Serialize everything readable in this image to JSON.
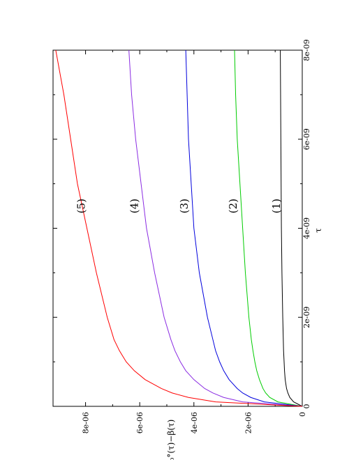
{
  "chart_data": {
    "type": "line",
    "orientation": "rotated 90 degrees counter-clockwise (x axis runs vertically, y axis horizontally)",
    "title": "",
    "xlabel": "τ",
    "ylabel": "β₀°(τ)−β(τ)",
    "xlim": [
      0,
      8e-09
    ],
    "ylim": [
      0,
      9.2e-06
    ],
    "grid": false,
    "x_ticks": [
      {
        "value": 0,
        "label": "0"
      },
      {
        "value": 2e-09,
        "label": "2e-09"
      },
      {
        "value": 4e-09,
        "label": "4e-09"
      },
      {
        "value": 6e-09,
        "label": "6e-09"
      },
      {
        "value": 8e-09,
        "label": "8e-09"
      }
    ],
    "y_ticks": [
      {
        "value": 0,
        "label": "0"
      },
      {
        "value": 2e-06,
        "label": "2e-06"
      },
      {
        "value": 4e-06,
        "label": "4e-06"
      },
      {
        "value": 6e-06,
        "label": "6e-06"
      },
      {
        "value": 8e-06,
        "label": "8e-06"
      }
    ],
    "x": [
      0,
      1e-10,
      2e-10,
      3e-10,
      4e-10,
      6e-10,
      8e-10,
      1e-09,
      1.25e-09,
      1.5e-09,
      2e-09,
      3e-09,
      4e-09,
      5e-09,
      6e-09,
      7e-09,
      8e-09
    ],
    "series": [
      {
        "label": "(1)",
        "color": "#000000",
        "values": [
          0,
          3.2e-07,
          4.6e-07,
          5.3e-07,
          5.8e-07,
          6.3e-07,
          6.55e-07,
          6.7e-07,
          6.9e-07,
          7e-07,
          7.2e-07,
          7.5e-07,
          7.7e-07,
          7.8e-07,
          7.9e-07,
          8e-07,
          8.1e-07
        ]
      },
      {
        "label": "(2)",
        "color": "#00cc00",
        "values": [
          0,
          9e-07,
          1.2e-06,
          1.35e-06,
          1.45e-06,
          1.58e-06,
          1.68e-06,
          1.75e-06,
          1.82e-06,
          1.88e-06,
          1.97e-06,
          2.1e-06,
          2.2e-06,
          2.3e-06,
          2.4e-06,
          2.46e-06,
          2.5e-06
        ]
      },
      {
        "label": "(3)",
        "color": "#0000dd",
        "values": [
          0,
          1.4e-06,
          1.9e-06,
          2.2e-06,
          2.4e-06,
          2.7e-06,
          2.9e-06,
          3.05e-06,
          3.2e-06,
          3.3e-06,
          3.5e-06,
          3.8e-06,
          4e-06,
          4.1e-06,
          4.2e-06,
          4.25e-06,
          4.3e-06
        ]
      },
      {
        "label": "(4)",
        "color": "#8a2be2",
        "values": [
          0,
          2.2e-06,
          2.9e-06,
          3.3e-06,
          3.6e-06,
          4e-06,
          4.3e-06,
          4.5e-06,
          4.7e-06,
          4.85e-06,
          5.1e-06,
          5.45e-06,
          5.75e-06,
          5.95e-06,
          6.15e-06,
          6.3e-06,
          6.4e-06
        ]
      },
      {
        "label": "(5)",
        "color": "#ff0000",
        "values": [
          0,
          3.2e-06,
          4.2e-06,
          4.8e-06,
          5.2e-06,
          5.8e-06,
          6.2e-06,
          6.5e-06,
          6.75e-06,
          6.95e-06,
          7.2e-06,
          7.6e-06,
          7.95e-06,
          8.3e-06,
          8.55e-06,
          8.8e-06,
          9.1e-06
        ]
      }
    ],
    "annotations": [
      {
        "text": "(1)",
        "x": 4.5e-09,
        "y": 9.5e-07
      },
      {
        "text": "(2)",
        "x": 4.5e-09,
        "y": 2.55e-06
      },
      {
        "text": "(3)",
        "x": 4.5e-09,
        "y": 4.35e-06
      },
      {
        "text": "(4)",
        "x": 4.5e-09,
        "y": 6.2e-06
      },
      {
        "text": "(5)",
        "x": 4.5e-09,
        "y": 8.15e-06
      }
    ]
  }
}
